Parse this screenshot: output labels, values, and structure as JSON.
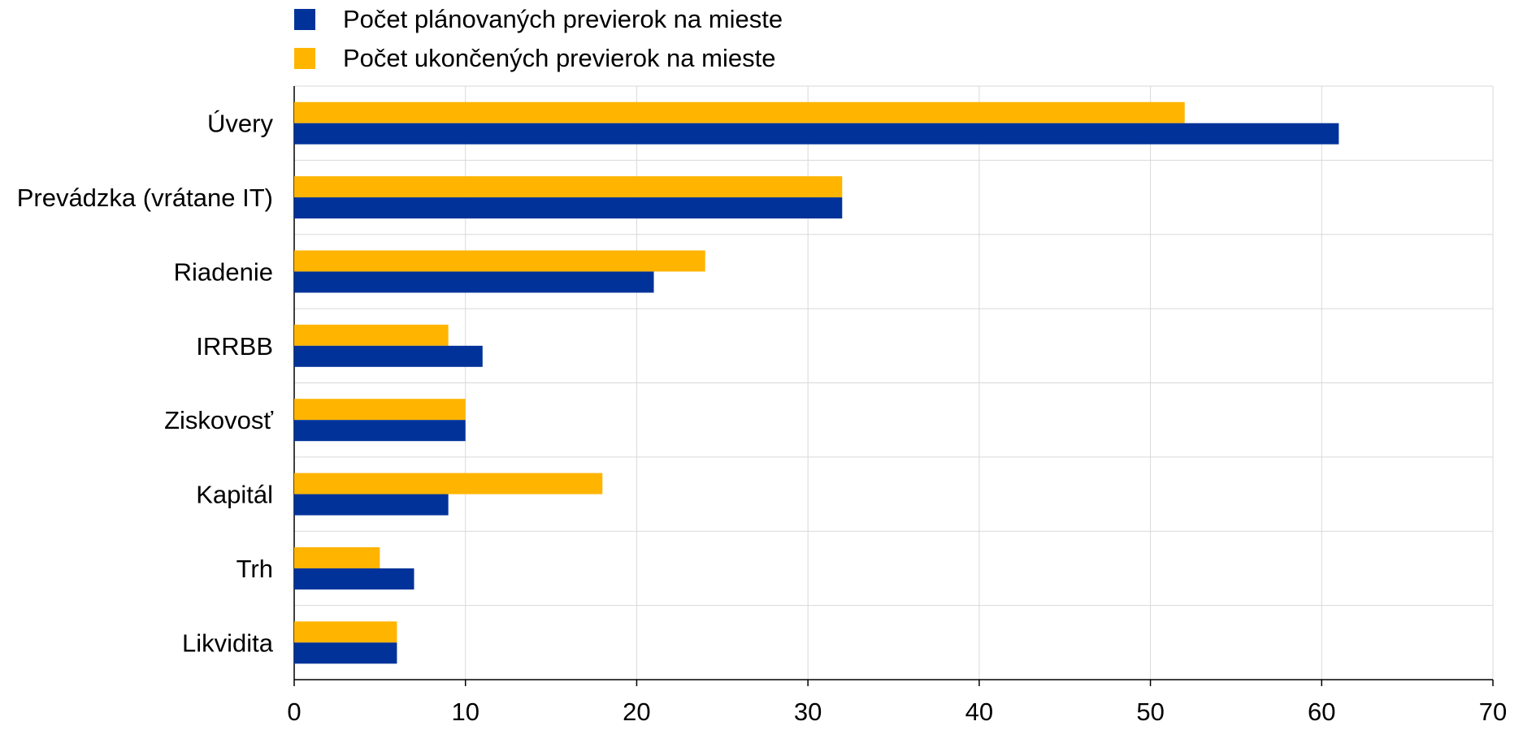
{
  "chart_data": {
    "type": "bar",
    "orientation": "horizontal",
    "title": "",
    "xlabel": "",
    "ylabel": "",
    "categories": [
      "Úvery",
      "Prevádzka (vrátane IT)",
      "Riadenie",
      "IRRBB",
      "Ziskovosť",
      "Kapitál",
      "Trh",
      "Likvidita"
    ],
    "series": [
      {
        "name": "Počet plánovaných previerok na mieste",
        "color": "#003299",
        "values": [
          61,
          32,
          21,
          11,
          10,
          9,
          7,
          6
        ]
      },
      {
        "name": "Počet ukončených previerok na mieste",
        "color": "#FFB400",
        "values": [
          52,
          32,
          24,
          9,
          10,
          18,
          5,
          6
        ]
      }
    ],
    "xlim": [
      0,
      70
    ],
    "xticks": [
      "0",
      "10",
      "20",
      "30",
      "40",
      "50",
      "60",
      "70"
    ],
    "grid": true,
    "legend_position": "top-left"
  }
}
